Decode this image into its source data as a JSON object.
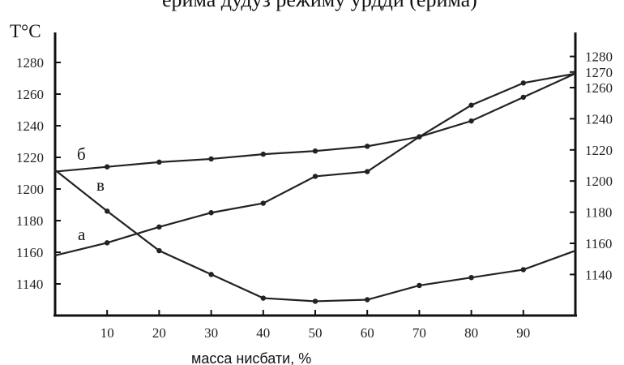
{
  "header_fragment": "ерима дудуз режиму урдди (ерима)",
  "chart_data": {
    "type": "line",
    "ylabel": "T°C",
    "xlabel": "масса нисбати, %",
    "xlim": [
      0,
      100
    ],
    "xticks": [
      10,
      20,
      30,
      40,
      50,
      60,
      70,
      80,
      90
    ],
    "ylim_left": [
      1120,
      1290
    ],
    "yticks_left": [
      1140,
      1160,
      1180,
      1200,
      1220,
      1240,
      1260,
      1280
    ],
    "ylim_right": [
      1120,
      1290
    ],
    "yticks_right": [
      1140,
      1160,
      1180,
      1200,
      1220,
      1240,
      1260,
      1270,
      1280
    ],
    "grid": false,
    "series": [
      {
        "name": "а",
        "x": [
          0,
          10,
          20,
          30,
          40,
          50,
          60,
          70,
          80,
          90,
          100
        ],
        "y": [
          1158,
          1166,
          1176,
          1185,
          1191,
          1208,
          1211,
          1233,
          1243,
          1258,
          1273
        ]
      },
      {
        "name": "б",
        "x": [
          0,
          10,
          20,
          30,
          40,
          50,
          60,
          70,
          80,
          90,
          100
        ],
        "y": [
          1211,
          1214,
          1217,
          1219,
          1222,
          1224,
          1227,
          1233,
          1253,
          1267,
          1273
        ]
      },
      {
        "name": "в",
        "x": [
          0,
          10,
          20,
          30,
          40,
          50,
          60,
          70,
          80,
          90,
          100
        ],
        "y": [
          1212,
          1186,
          1161,
          1146,
          1131,
          1129,
          1130,
          1139,
          1144,
          1149,
          1161
        ]
      }
    ]
  }
}
